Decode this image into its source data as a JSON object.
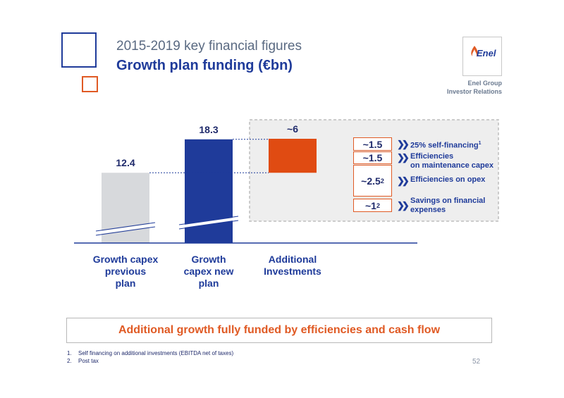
{
  "header": {
    "title": "2015-2019 key financial figures",
    "subtitle": "Growth plan funding (€bn)",
    "logo_text": "Enel",
    "org_line1": "Enel Group",
    "org_line2": "Investor Relations"
  },
  "chart_data": {
    "type": "bar",
    "categories": [
      "Growth capex previous plan",
      "Growth capex new plan",
      "Additional Investments"
    ],
    "category_lines": [
      [
        "Growth capex",
        "previous",
        "plan"
      ],
      [
        "Growth",
        "capex new",
        "plan"
      ],
      [
        "Additional",
        "Investments"
      ]
    ],
    "values": [
      12.4,
      18.3,
      6
    ],
    "value_labels": [
      "12.4",
      "18.3",
      "~6"
    ],
    "waterfall_base": [
      0,
      0,
      12.4
    ],
    "colors": [
      "#d7d9dc",
      "#1f3b9a",
      "#e04b12"
    ],
    "breakdown": [
      {
        "value_label": "~1.5",
        "sup": "",
        "label": "25% self-financing",
        "label_sup": "1",
        "label_line2": ""
      },
      {
        "value_label": "~1.5",
        "sup": "",
        "label": "Efficiencies",
        "label_sup": "",
        "label_line2": "on maintenance capex"
      },
      {
        "value_label": "~2.5",
        "sup": "2",
        "label": "Efficiencies on opex",
        "label_sup": "",
        "label_line2": ""
      },
      {
        "value_label": "~1",
        "sup": "2",
        "label": "Savings on financial",
        "label_sup": "",
        "label_line2": "expenses"
      }
    ]
  },
  "conclusion": "Additional growth fully funded by efficiencies and cash flow",
  "footnotes": [
    {
      "num": "1.",
      "text": "Self financing on additional investments (EBITDA net of taxes)"
    },
    {
      "num": "2.",
      "text": "Post tax"
    }
  ],
  "page_number": "52",
  "colors": {
    "brand_blue": "#1f3b9a",
    "accent_orange": "#e05a24"
  }
}
